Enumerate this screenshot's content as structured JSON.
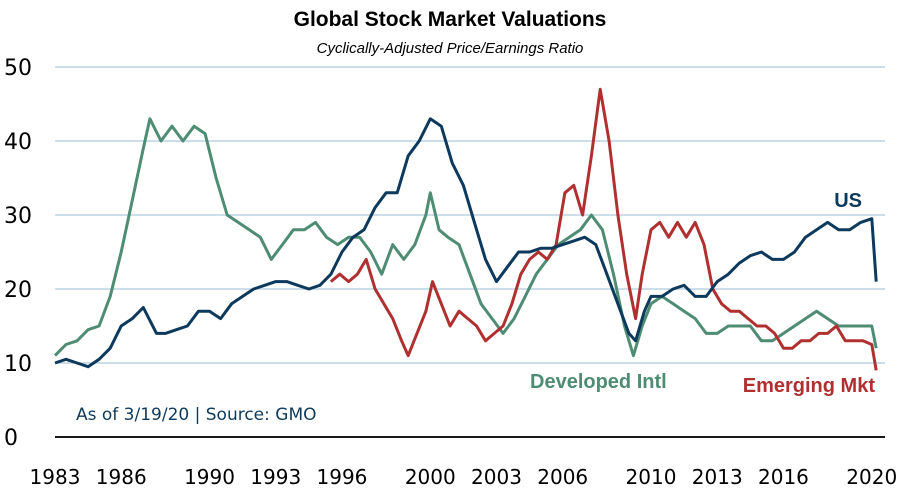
{
  "chart_data": {
    "type": "line",
    "title": "Global Stock Market Valuations",
    "subtitle": "Cyclically-Adjusted Price/Earnings Ratio",
    "source_note": "As of 3/19/20 | Source: GMO",
    "ylim": [
      0,
      50
    ],
    "yticks": [
      0,
      10,
      20,
      30,
      40,
      50
    ],
    "xlim": [
      1983,
      2020.6
    ],
    "xticks": [
      1983,
      1986,
      1990,
      1993,
      1996,
      2000,
      2003,
      2006,
      2010,
      2013,
      2016,
      2020
    ],
    "xtick_labels": [
      "1983",
      "1986",
      "1990",
      "1993",
      "1996",
      "2000",
      "2003",
      "2006",
      "2010",
      "2013",
      "2016",
      "2020"
    ],
    "grid": "horizontal",
    "series": [
      {
        "name": "US",
        "color": "#0d3a5c",
        "x": [
          1983.0,
          1983.5,
          1984.0,
          1984.5,
          1985.0,
          1985.5,
          1986.0,
          1986.5,
          1987.0,
          1987.6,
          1988.0,
          1988.5,
          1989.0,
          1989.5,
          1990.0,
          1990.5,
          1991.0,
          1991.5,
          1992.0,
          1992.5,
          1993.0,
          1993.5,
          1994.0,
          1994.5,
          1995.0,
          1995.5,
          1996.0,
          1996.5,
          1997.0,
          1997.5,
          1998.0,
          1998.5,
          1999.0,
          1999.5,
          2000.0,
          2000.5,
          2001.0,
          2001.5,
          2002.0,
          2002.5,
          2003.0,
          2003.5,
          2004.0,
          2004.5,
          2005.0,
          2005.5,
          2006.0,
          2006.5,
          2007.0,
          2007.5,
          2008.0,
          2008.5,
          2009.0,
          2009.3,
          2009.7,
          2010.0,
          2010.5,
          2011.0,
          2011.5,
          2012.0,
          2012.5,
          2013.0,
          2013.5,
          2014.0,
          2014.5,
          2015.0,
          2015.5,
          2016.0,
          2016.5,
          2017.0,
          2017.5,
          2018.0,
          2018.5,
          2019.0,
          2019.5,
          2020.0,
          2020.2
        ],
        "y": [
          10,
          10.5,
          10,
          9.5,
          10.5,
          12,
          15,
          16,
          17.5,
          14,
          14,
          14.5,
          15,
          17,
          17,
          16,
          18,
          19,
          20,
          20.5,
          21,
          21,
          20.5,
          20,
          20.5,
          22,
          25,
          27,
          28,
          31,
          33,
          33,
          38,
          40,
          43,
          42,
          37,
          34,
          29,
          24,
          21,
          23,
          25,
          25,
          25.5,
          25.5,
          26,
          26.5,
          27,
          26,
          22,
          18,
          14,
          13,
          17,
          19,
          19,
          20,
          20.5,
          19,
          19,
          21,
          22,
          23.5,
          24.5,
          25,
          24,
          24,
          25,
          27,
          28,
          29,
          28,
          28,
          29,
          29.5,
          21
        ]
      },
      {
        "name": "Developed Intl",
        "color": "#4e8c74",
        "x": [
          1983.0,
          1983.5,
          1984.0,
          1984.5,
          1985.0,
          1985.5,
          1986.0,
          1986.5,
          1987.0,
          1987.3,
          1987.8,
          1988.3,
          1988.8,
          1989.3,
          1989.8,
          1990.3,
          1990.8,
          1991.3,
          1991.8,
          1992.3,
          1992.8,
          1993.3,
          1993.8,
          1994.3,
          1994.8,
          1995.3,
          1995.8,
          1996.3,
          1996.8,
          1997.3,
          1997.8,
          1998.3,
          1998.8,
          1999.3,
          1999.8,
          2000.0,
          2000.4,
          2000.8,
          2001.3,
          2001.8,
          2002.3,
          2002.8,
          2003.3,
          2003.8,
          2004.3,
          2004.8,
          2005.3,
          2005.8,
          2006.3,
          2006.8,
          2007.3,
          2007.8,
          2008.3,
          2008.8,
          2009.2,
          2009.6,
          2010.0,
          2010.5,
          2011.0,
          2011.5,
          2012.0,
          2012.5,
          2013.0,
          2013.5,
          2014.0,
          2014.5,
          2015.0,
          2015.5,
          2016.0,
          2016.5,
          2017.0,
          2017.5,
          2018.0,
          2018.5,
          2019.0,
          2019.5,
          2020.0,
          2020.2
        ],
        "y": [
          11,
          12.5,
          13,
          14.5,
          15,
          19,
          25,
          32,
          39,
          43,
          40,
          42,
          40,
          42,
          41,
          35,
          30,
          29,
          28,
          27,
          24,
          26,
          28,
          28,
          29,
          27,
          26,
          27,
          27,
          25,
          22,
          26,
          24,
          26,
          30,
          33,
          28,
          27,
          26,
          22,
          18,
          16,
          14,
          16,
          19,
          22,
          24,
          26,
          27,
          28,
          30,
          28,
          22,
          15,
          11,
          15,
          18,
          19,
          18,
          17,
          16,
          14,
          14,
          15,
          15,
          15,
          13,
          13,
          14,
          15,
          16,
          17,
          16,
          15,
          15,
          15,
          15,
          12
        ]
      },
      {
        "name": "Emerging Mkt",
        "color": "#b03030",
        "x": [
          1995.5,
          1995.9,
          1996.3,
          1996.7,
          1997.1,
          1997.5,
          1997.9,
          1998.3,
          1998.7,
          1999.0,
          1999.4,
          1999.8,
          2000.1,
          2000.5,
          2000.9,
          2001.3,
          2001.7,
          2002.1,
          2002.5,
          2002.9,
          2003.3,
          2003.7,
          2004.1,
          2004.5,
          2004.9,
          2005.3,
          2005.7,
          2006.1,
          2006.5,
          2006.9,
          2007.3,
          2007.7,
          2008.1,
          2008.5,
          2008.9,
          2009.3,
          2009.6,
          2010.0,
          2010.4,
          2010.8,
          2011.2,
          2011.6,
          2012.0,
          2012.4,
          2012.8,
          2013.2,
          2013.6,
          2014.0,
          2014.4,
          2014.8,
          2015.2,
          2015.6,
          2016.0,
          2016.4,
          2016.8,
          2017.2,
          2017.6,
          2018.0,
          2018.4,
          2018.8,
          2019.2,
          2019.6,
          2020.0,
          2020.2
        ],
        "y": [
          21,
          22,
          21,
          22,
          24,
          20,
          18,
          16,
          13,
          11,
          14,
          17,
          21,
          18,
          15,
          17,
          16,
          15,
          13,
          14,
          15,
          18,
          22,
          24,
          25,
          24,
          26,
          33,
          34,
          30,
          38,
          47,
          40,
          30,
          22,
          16,
          22,
          28,
          29,
          27,
          29,
          27,
          29,
          26,
          20,
          18,
          17,
          17,
          16,
          15,
          15,
          14,
          12,
          12,
          13,
          13,
          14,
          14,
          15,
          13,
          13,
          13,
          12.5,
          9
        ]
      }
    ]
  }
}
